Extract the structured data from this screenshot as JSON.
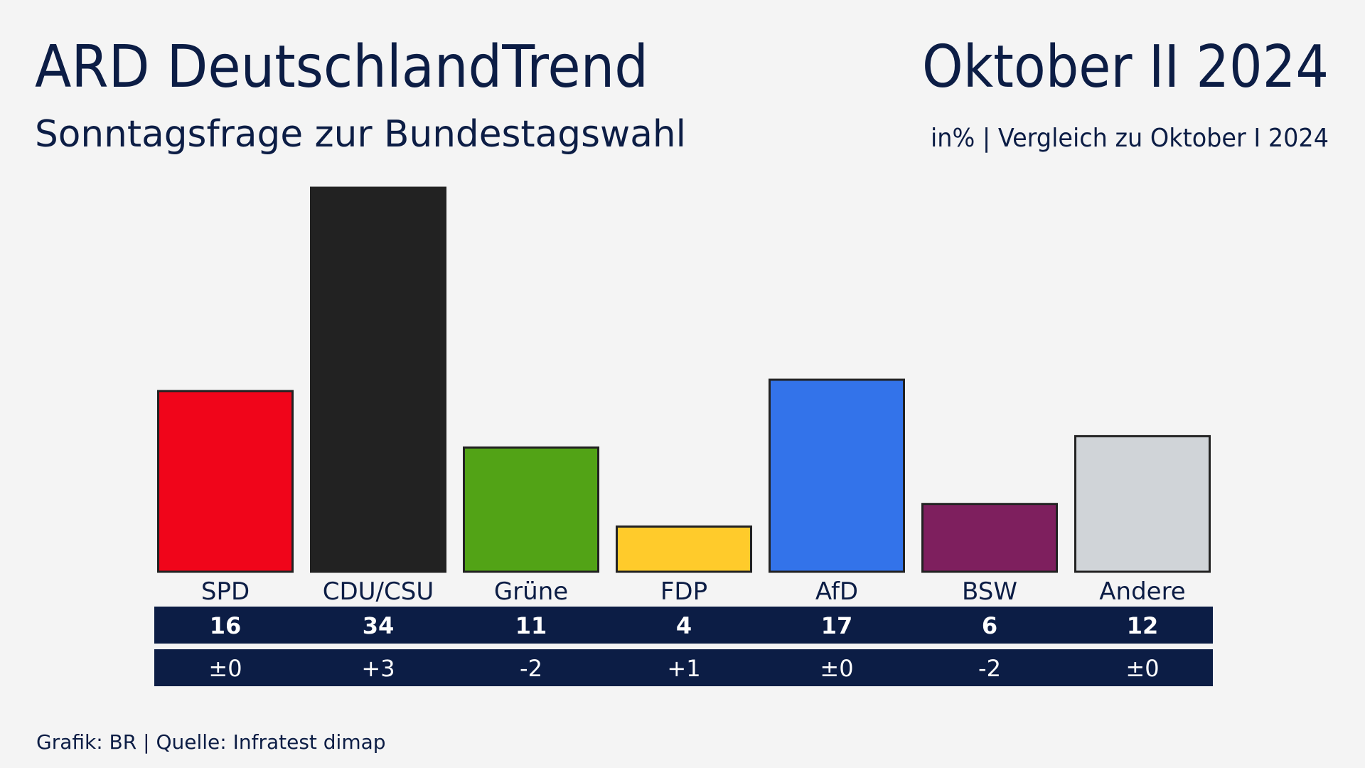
{
  "chart_data": {
    "type": "bar",
    "title": "ARD DeutschlandTrend",
    "subtitle": "Sonntagsfrage zur Bundestagswahl",
    "period": "Oktober II 2024",
    "note": "in% | Vergleich zu Oktober I 2024",
    "categories": [
      "SPD",
      "CDU/CSU",
      "Grüne",
      "FDP",
      "AfD",
      "BSW",
      "Andere"
    ],
    "values": [
      16,
      34,
      11,
      4,
      17,
      6,
      12
    ],
    "colors": [
      "#f0051a",
      "#222222",
      "#52a316",
      "#ffcb2b",
      "#3373ea",
      "#7e1f5e",
      "#d0d4d8"
    ],
    "changes": [
      "±0",
      "+3",
      "-2",
      "+1",
      "±0",
      "-2",
      "±0"
    ],
    "source": "Grafik: BR | Quelle: Infratest dimap"
  }
}
